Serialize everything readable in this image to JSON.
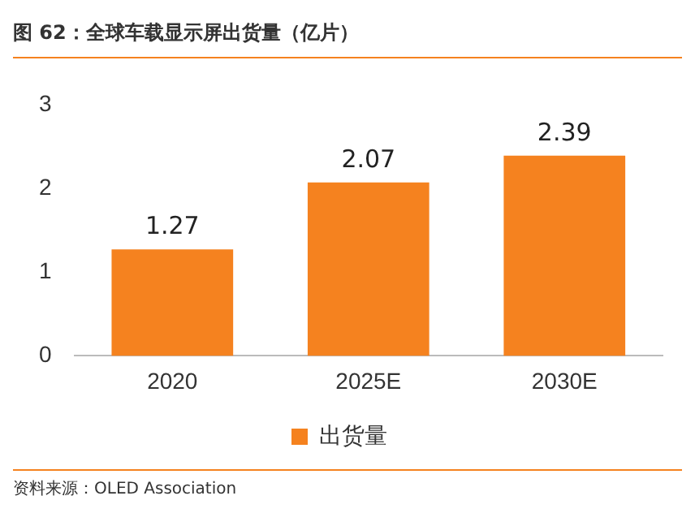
{
  "chart_data": {
    "type": "bar",
    "title": "图 62：全球车载显示屏出货量（亿片）",
    "categories": [
      "2020",
      "2025E",
      "2030E"
    ],
    "series": [
      {
        "name": "出货量",
        "color": "#f5821f",
        "values": [
          1.27,
          2.07,
          2.39
        ]
      }
    ],
    "ylim": [
      0,
      3
    ],
    "yticks": [
      0,
      1,
      2,
      3
    ],
    "grid": false,
    "legend": "bottom",
    "data_labels": true,
    "annotations": [
      "资料来源：OLED Association"
    ]
  }
}
